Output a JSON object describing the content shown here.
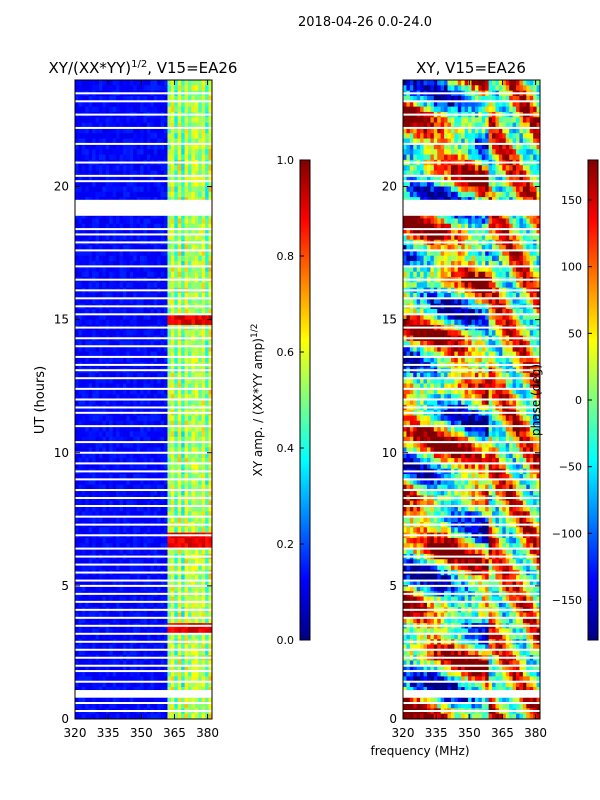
{
  "suptitle": "2018-04-26 0.0-24.0",
  "shared_xlabel": "frequency (MHz)",
  "colors": {
    "jet": [
      "#00007f",
      "#0000ff",
      "#007fff",
      "#00ffff",
      "#7fff7f",
      "#ffff00",
      "#ff7f00",
      "#ff0000",
      "#7f0000"
    ]
  },
  "chart_data": [
    {
      "type": "heatmap",
      "title": "XY/(XX*YY)",
      "title_superscript": "1/2",
      "title_suffix": ", V15=EA26",
      "xlabel": "",
      "ylabel": "UT (hours)",
      "xlim": [
        320,
        382
      ],
      "ylim": [
        0,
        24
      ],
      "xticks": [
        320,
        335,
        350,
        365,
        380
      ],
      "yticks": [
        0,
        5,
        10,
        15,
        20
      ],
      "colorbar": {
        "label": "XY amp. / (XX*YY amp)",
        "label_superscript": "1/2",
        "range": [
          0.0,
          1.0
        ],
        "ticks": [
          "0.0",
          "0.2",
          "0.4",
          "0.6",
          "0.8",
          "1.0"
        ]
      },
      "description_values": {
        "background": 0.1,
        "active_band_mhz": [
          362,
          382
        ],
        "hot_times_hours": [
          3.4,
          6.7,
          15.0
        ]
      }
    },
    {
      "type": "heatmap",
      "title": "XY, V15=EA26",
      "xlabel": "",
      "ylabel": "",
      "xlim": [
        320,
        382
      ],
      "ylim": [
        0,
        24
      ],
      "xticks": [
        320,
        335,
        350,
        365,
        380
      ],
      "yticks": [
        0,
        5,
        10,
        15,
        20
      ],
      "colorbar": {
        "label": "phase (deg)",
        "range": [
          -180,
          180
        ],
        "ticks": [
          "−150",
          "−100",
          "−50",
          "0",
          "50",
          "100",
          "150"
        ]
      }
    }
  ],
  "flagged_rows_hours": [
    0.3,
    0.6,
    0.9,
    1.05,
    1.4,
    1.8,
    2.0,
    2.3,
    2.6,
    2.9,
    3.2,
    3.5,
    3.8,
    4.1,
    4.4,
    4.7,
    5.0,
    5.2,
    5.5,
    5.8,
    6.1,
    6.4,
    6.9,
    7.3,
    7.6,
    8.0,
    8.3,
    8.6,
    9.0,
    9.3,
    9.6,
    10.0,
    10.4,
    11.0,
    11.5,
    11.7,
    12.0,
    12.4,
    12.8,
    13.1,
    13.3,
    13.6,
    14.0,
    14.3,
    14.7,
    15.2,
    15.5,
    15.8,
    16.1,
    16.5,
    17.0,
    17.6,
    17.9,
    18.2,
    18.4,
    19.0,
    20.2,
    20.4,
    20.9,
    21.6,
    22.2,
    22.7,
    23.2,
    23.5
  ]
}
